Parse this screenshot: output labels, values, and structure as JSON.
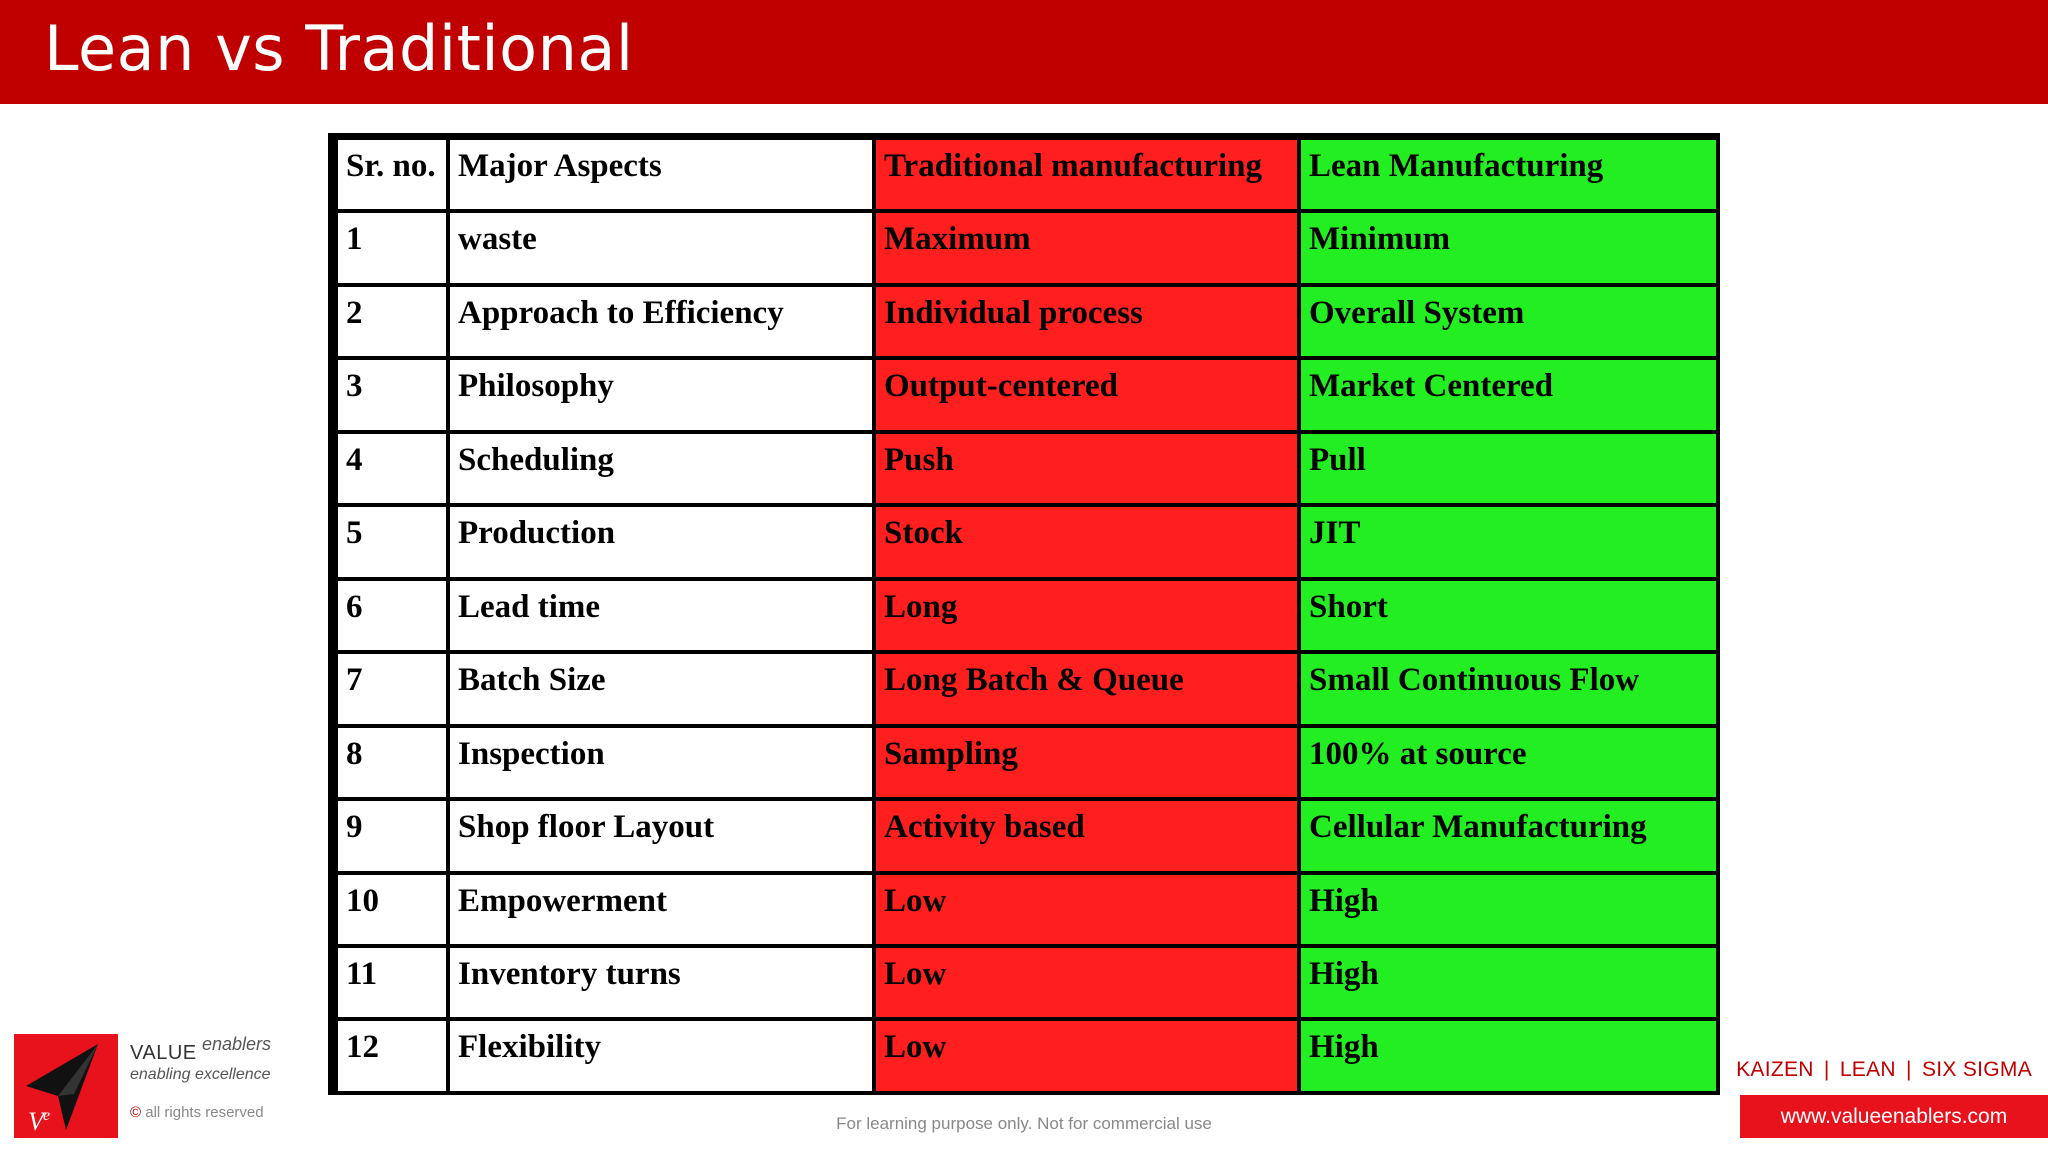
{
  "header": {
    "title": "Lean vs Traditional"
  },
  "table": {
    "columns": [
      "Sr. no.",
      "Major Aspects",
      "Traditional manufacturing",
      "Lean Manufacturing"
    ],
    "rows": [
      {
        "sr": "1",
        "aspect": "waste",
        "traditional": "Maximum",
        "lean": "Minimum"
      },
      {
        "sr": "2",
        "aspect": "Approach to Efficiency",
        "traditional": "Individual process",
        "lean": "Overall System"
      },
      {
        "sr": "3",
        "aspect": "Philosophy",
        "traditional": "Output-centered",
        "lean": "Market Centered"
      },
      {
        "sr": "4",
        "aspect": "Scheduling",
        "traditional": "Push",
        "lean": "Pull"
      },
      {
        "sr": "5",
        "aspect": "Production",
        "traditional": "Stock",
        "lean": "JIT"
      },
      {
        "sr": "6",
        "aspect": "Lead time",
        "traditional": "Long",
        "lean": "Short"
      },
      {
        "sr": "7",
        "aspect": "Batch Size",
        "traditional": "Long  Batch & Queue",
        "lean": "Small Continuous Flow"
      },
      {
        "sr": "8",
        "aspect": "Inspection",
        "traditional": "Sampling",
        "lean": "100% at source"
      },
      {
        "sr": "9",
        "aspect": "Shop floor Layout",
        "traditional": "Activity based",
        "lean": "Cellular Manufacturing"
      },
      {
        "sr": "10",
        "aspect": "Empowerment",
        "traditional": "Low",
        "lean": "High"
      },
      {
        "sr": "11",
        "aspect": "Inventory turns",
        "traditional": "Low",
        "lean": "High"
      },
      {
        "sr": "12",
        "aspect": "Flexibility",
        "traditional": "Low",
        "lean": "High"
      }
    ],
    "colors": {
      "traditional": "#ff1f1f",
      "lean": "#22ee22"
    }
  },
  "logo": {
    "icon": "star-logo-icon",
    "brand_value": "VALUE",
    "brand_enablers": "enablers",
    "tagline": "enabling excellence",
    "rights_symbol": "©",
    "rights": "all rights reserved"
  },
  "footer": {
    "note": "For learning purpose only. Not for commercial use",
    "tags": [
      "KAIZEN",
      "LEAN",
      "SIX SIGMA"
    ],
    "separator": "|",
    "url": "www.valueenablers.com"
  }
}
